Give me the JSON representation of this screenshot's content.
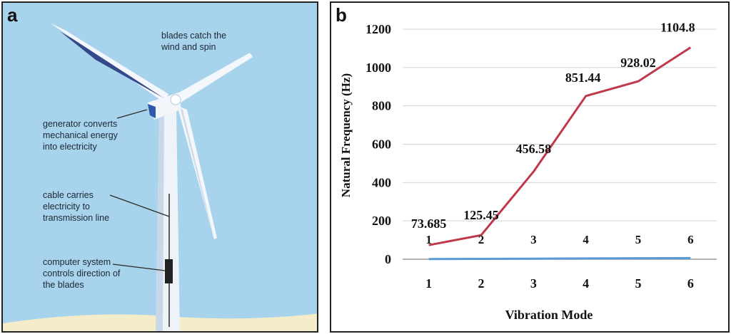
{
  "panel_a": {
    "label": "a",
    "callouts": {
      "blades": [
        "blades catch the",
        "wind and spin"
      ],
      "generator": [
        "generator converts",
        "mechanical energy",
        "into electricity"
      ],
      "cable": [
        "cable carries",
        "electricity to",
        "transmission line"
      ],
      "computer": [
        "computer system",
        "controls direction of",
        "the blades"
      ]
    },
    "colors": {
      "sky": "#a7d3ec",
      "tower": "#eef3f8",
      "blade_shadow": "#3a4f8f",
      "ground": "#f5ecc9"
    }
  },
  "panel_b": {
    "label": "b",
    "chart_data": {
      "type": "line",
      "xlabel": "Vibration Mode",
      "ylabel": "Natural Frequency (Hz)",
      "x": [
        1,
        2,
        3,
        4,
        5,
        6
      ],
      "x_ticks": [
        "1",
        "2",
        "3",
        "4",
        "5",
        "6"
      ],
      "ylim": [
        0,
        1200
      ],
      "y_ticks": [
        "0",
        "200",
        "400",
        "600",
        "800",
        "1000",
        "1200"
      ],
      "grid": "horizontal",
      "legend": "none",
      "series": [
        {
          "color": "#c0394b",
          "values": [
            73.685,
            125.45,
            456.58,
            851.44,
            928.02,
            1104.8
          ],
          "labels": [
            "73.685",
            "125.45",
            "456.58",
            "851.44",
            "928.02",
            "1104.8"
          ]
        },
        {
          "color": "#5b9bd5",
          "values": [
            1,
            2,
            3,
            4,
            5,
            6
          ],
          "labels": [
            "1",
            "2",
            "3",
            "4",
            "5",
            "6"
          ]
        }
      ]
    }
  }
}
